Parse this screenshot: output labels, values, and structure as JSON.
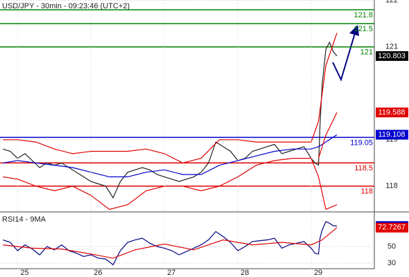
{
  "chart_data": [
    {
      "type": "line",
      "title": "USD/JPY - 30min - 09:23:46 (UTC+2)",
      "xlim": [
        24.76,
        29.86
      ],
      "ylim": [
        117.46,
        122.01
      ],
      "yticks": [
        122,
        121,
        119,
        118
      ],
      "grid": true,
      "levels": [
        {
          "value": 121.8,
          "color": "#008000"
        },
        {
          "value": 121.5,
          "color": "#008000"
        },
        {
          "value": 121,
          "color": "#008000"
        },
        {
          "value": 119.05,
          "color": "#0000cc"
        },
        {
          "value": 118.5,
          "color": "#e00000"
        },
        {
          "value": 118,
          "color": "#e00000"
        }
      ],
      "series": [
        {
          "color": "#222222",
          "last_value_tag": true,
          "tag_color": "#000000",
          "x": [
            24.8,
            24.9,
            25.0,
            25.1,
            25.2,
            25.3,
            25.4,
            25.5,
            25.6,
            25.7,
            25.8,
            25.9,
            26.0,
            26.1,
            26.2,
            26.3,
            26.4,
            26.5,
            26.6,
            26.7,
            26.8,
            26.9,
            27.0,
            27.1,
            27.2,
            27.3,
            27.4,
            27.5,
            27.6,
            27.7,
            27.8,
            27.9,
            28.0,
            28.1,
            28.2,
            28.3,
            28.4,
            28.5,
            28.6,
            28.7,
            28.8,
            28.9,
            29.0,
            29.05,
            29.1,
            29.12,
            29.15,
            29.2,
            29.25,
            29.3,
            29.35
          ],
          "values": [
            118.8,
            118.75,
            118.6,
            118.7,
            118.55,
            118.4,
            118.5,
            118.45,
            118.5,
            118.4,
            118.3,
            118.2,
            118.1,
            118.05,
            118.0,
            117.75,
            118.1,
            118.3,
            118.35,
            118.4,
            118.35,
            118.25,
            118.2,
            118.15,
            118.1,
            118.15,
            118.2,
            118.3,
            118.5,
            118.95,
            118.85,
            118.75,
            118.55,
            118.6,
            118.75,
            118.8,
            118.85,
            118.9,
            118.7,
            118.75,
            118.8,
            118.85,
            118.6,
            118.5,
            118.45,
            119.3,
            120.2,
            120.95,
            121.1,
            120.9,
            120.803
          ]
        },
        {
          "color": "#e00000",
          "last_value_tag": false,
          "x": [
            24.8,
            25.0,
            25.25,
            25.5,
            25.75,
            26.0,
            26.25,
            26.5,
            26.75,
            27.0,
            27.25,
            27.5,
            27.75,
            28.0,
            28.25,
            28.5,
            28.75,
            29.0,
            29.1,
            29.2,
            29.35
          ],
          "values": [
            119.0,
            119.0,
            118.95,
            118.8,
            118.7,
            118.75,
            118.75,
            118.75,
            118.8,
            118.7,
            118.5,
            118.6,
            119.0,
            119.0,
            118.95,
            118.95,
            118.95,
            118.95,
            119.4,
            120.6,
            121.3
          ]
        },
        {
          "color": "#e00000",
          "last_value_tag": false,
          "x": [
            24.8,
            25.0,
            25.25,
            25.5,
            25.75,
            26.0,
            26.25,
            26.5,
            26.75,
            27.0,
            27.25,
            27.5,
            27.75,
            28.0,
            28.25,
            28.5,
            28.75,
            29.0,
            29.1,
            29.2,
            29.35
          ],
          "values": [
            118.2,
            118.15,
            118.0,
            117.9,
            118.0,
            117.8,
            117.5,
            117.6,
            117.9,
            118.0,
            118.0,
            117.9,
            118.0,
            118.2,
            118.45,
            118.55,
            118.6,
            118.6,
            118.2,
            117.5,
            117.6
          ]
        },
        {
          "color": "#0000cc",
          "last_value_tag": true,
          "tag_color": "#0000cc",
          "x": [
            24.8,
            25.0,
            25.25,
            25.5,
            25.75,
            26.0,
            26.25,
            26.5,
            26.75,
            27.0,
            27.25,
            27.5,
            27.75,
            28.0,
            28.25,
            28.5,
            28.75,
            29.0,
            29.1,
            29.2,
            29.35
          ],
          "values": [
            118.5,
            118.55,
            118.5,
            118.45,
            118.4,
            118.3,
            118.2,
            118.2,
            118.3,
            118.35,
            118.25,
            118.25,
            118.45,
            118.55,
            118.65,
            118.75,
            118.8,
            118.8,
            118.85,
            118.95,
            119.108
          ]
        },
        {
          "color": "#e00000",
          "last_value_tag": true,
          "tag_color": "#e00000",
          "x": [
            29.1,
            29.2,
            29.35
          ],
          "values": [
            118.6,
            119.1,
            119.588
          ]
        }
      ]
    },
    {
      "type": "line",
      "title": "RSI14 - 9MA",
      "xlim": [
        24.76,
        29.86
      ],
      "xticks": [
        25,
        26,
        27,
        28,
        29
      ],
      "ylim": [
        23.3,
        90
      ],
      "yticks": [
        50,
        30
      ],
      "grid": true,
      "series": [
        {
          "color": "#000080",
          "last_value_tag": true,
          "tag_color": "#0000cc",
          "x": [
            24.8,
            24.9,
            25.0,
            25.1,
            25.2,
            25.3,
            25.4,
            25.5,
            25.6,
            25.7,
            25.8,
            25.9,
            26.0,
            26.1,
            26.2,
            26.3,
            26.4,
            26.5,
            26.6,
            26.7,
            26.8,
            26.9,
            27.0,
            27.1,
            27.2,
            27.3,
            27.4,
            27.5,
            27.6,
            27.7,
            27.8,
            27.9,
            28.0,
            28.1,
            28.2,
            28.3,
            28.4,
            28.5,
            28.6,
            28.7,
            28.8,
            28.9,
            29.0,
            29.05,
            29.1,
            29.12,
            29.15,
            29.2,
            29.25,
            29.3,
            29.35
          ],
          "values": [
            58,
            55,
            45,
            52,
            47,
            40,
            50,
            46,
            52,
            45,
            42,
            38,
            40,
            36,
            35,
            28,
            45,
            55,
            58,
            60,
            54,
            50,
            48,
            45,
            40,
            44,
            48,
            52,
            58,
            68,
            62,
            55,
            45,
            50,
            56,
            57,
            58,
            60,
            48,
            52,
            54,
            56,
            48,
            42,
            41,
            60,
            70,
            80,
            78,
            75,
            74.6512
          ]
        },
        {
          "color": "#e00000",
          "last_value_tag": true,
          "tag_color": "#e00000",
          "x": [
            24.8,
            25.2,
            25.6,
            26.0,
            26.3,
            26.6,
            27.0,
            27.4,
            27.8,
            28.2,
            28.6,
            29.0,
            29.15,
            29.35
          ],
          "values": [
            52,
            48,
            47,
            41,
            36,
            46,
            53,
            46,
            58,
            52,
            55,
            52,
            58,
            72.7267
          ]
        }
      ]
    }
  ]
}
